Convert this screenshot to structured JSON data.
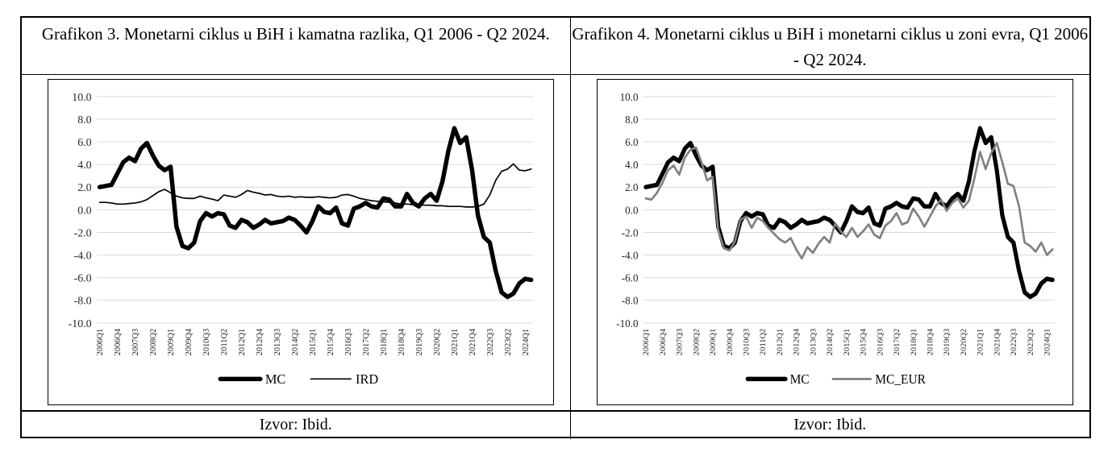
{
  "panels": [
    {
      "title": "Grafikon 3. Monetarni ciklus u BiH i kamatna razlika, Q1 2006 - Q2 2024.",
      "source": "Izvor: Ibid."
    },
    {
      "title": "Grafikon 4. Monetarni ciklus u BiH i monetarni ciklus u zoni evra, Q1 2006 - Q2 2024.",
      "source": "Izvor: Ibid."
    }
  ],
  "chart_data": [
    {
      "type": "line",
      "title": "Grafikon 3. Monetarni ciklus u BiH i kamatna razlika, Q1 2006 - Q2 2024.",
      "xlabel": "",
      "ylabel": "",
      "ylim": [
        -10,
        10
      ],
      "ytick_step": 2,
      "xtick_step": 3,
      "grid": true,
      "grid_color": "#d9d9d9",
      "legend_position": "bottom",
      "ytick_labels": [
        "10.0",
        "8.0",
        "6.0",
        "4.0",
        "2.0",
        "0.0",
        "-2.0",
        "-4.0",
        "-6.0",
        "-8.0",
        "-10.0"
      ],
      "xtick_labels": [
        "2006Q1",
        "2006Q4",
        "2007Q3",
        "2008Q2",
        "2009Q1",
        "2009Q4",
        "2010Q3",
        "2011Q2",
        "2012Q1",
        "2012Q4",
        "2013Q3",
        "2014Q2",
        "2015Q1",
        "2015Q4",
        "2016Q3",
        "2017Q2",
        "2018Q1",
        "2018Q4",
        "2019Q3",
        "2020Q2",
        "2021Q1",
        "2021Q4",
        "2022Q3",
        "2023Q2",
        "2024Q1"
      ],
      "x": [
        "2006Q1",
        "2006Q2",
        "2006Q3",
        "2006Q4",
        "2007Q1",
        "2007Q2",
        "2007Q3",
        "2007Q4",
        "2008Q1",
        "2008Q2",
        "2008Q3",
        "2008Q4",
        "2009Q1",
        "2009Q2",
        "2009Q3",
        "2009Q4",
        "2010Q1",
        "2010Q2",
        "2010Q3",
        "2010Q4",
        "2011Q1",
        "2011Q2",
        "2011Q3",
        "2011Q4",
        "2012Q1",
        "2012Q2",
        "2012Q3",
        "2012Q4",
        "2013Q1",
        "2013Q2",
        "2013Q3",
        "2013Q4",
        "2014Q1",
        "2014Q2",
        "2014Q3",
        "2014Q4",
        "2015Q1",
        "2015Q2",
        "2015Q3",
        "2015Q4",
        "2016Q1",
        "2016Q2",
        "2016Q3",
        "2016Q4",
        "2017Q1",
        "2017Q2",
        "2017Q3",
        "2017Q4",
        "2018Q1",
        "2018Q2",
        "2018Q3",
        "2018Q4",
        "2019Q1",
        "2019Q2",
        "2019Q3",
        "2019Q4",
        "2020Q1",
        "2020Q2",
        "2020Q3",
        "2020Q4",
        "2021Q1",
        "2021Q2",
        "2021Q3",
        "2021Q4",
        "2022Q1",
        "2022Q2",
        "2022Q3",
        "2022Q4",
        "2023Q1",
        "2023Q2",
        "2023Q3",
        "2023Q4",
        "2024Q1",
        "2024Q2"
      ],
      "series": [
        {
          "name": "MC",
          "color": "#000000",
          "values": [
            2.0,
            2.1,
            2.2,
            3.2,
            4.2,
            4.6,
            4.3,
            5.4,
            5.9,
            4.8,
            3.9,
            3.5,
            3.8,
            -1.5,
            -3.2,
            -3.4,
            -2.9,
            -1.0,
            -0.3,
            -0.6,
            -0.3,
            -0.4,
            -1.4,
            -1.6,
            -0.9,
            -1.1,
            -1.6,
            -1.3,
            -0.9,
            -1.2,
            -1.1,
            -1.0,
            -0.7,
            -0.9,
            -1.4,
            -2.0,
            -1.0,
            0.3,
            -0.2,
            -0.3,
            0.2,
            -1.2,
            -1.4,
            0.1,
            0.3,
            0.6,
            0.3,
            0.2,
            1.0,
            0.9,
            0.3,
            0.3,
            1.4,
            0.6,
            0.3,
            1.0,
            1.4,
            0.8,
            2.5,
            5.2,
            7.2,
            5.9,
            6.4,
            3.5,
            -0.5,
            -2.4,
            -2.9,
            -5.4,
            -7.3,
            -7.7,
            -7.4,
            -6.5,
            -6.1,
            -6.2
          ]
        },
        {
          "name": "IRD",
          "color": "#000000",
          "values": [
            0.65,
            0.65,
            0.6,
            0.5,
            0.5,
            0.55,
            0.6,
            0.7,
            0.9,
            1.25,
            1.6,
            1.8,
            1.5,
            1.2,
            1.05,
            1.0,
            1.0,
            1.2,
            1.05,
            0.95,
            0.8,
            1.3,
            1.2,
            1.1,
            1.35,
            1.7,
            1.55,
            1.45,
            1.3,
            1.35,
            1.2,
            1.15,
            1.2,
            1.1,
            1.15,
            1.1,
            1.1,
            1.15,
            1.1,
            1.05,
            1.1,
            1.3,
            1.35,
            1.2,
            1.0,
            0.9,
            0.8,
            0.75,
            0.7,
            0.65,
            0.6,
            0.5,
            0.5,
            0.45,
            0.45,
            0.4,
            0.4,
            0.35,
            0.35,
            0.3,
            0.3,
            0.3,
            0.25,
            0.25,
            0.3,
            0.5,
            1.3,
            2.6,
            3.4,
            3.6,
            4.05,
            3.5,
            3.45,
            3.6
          ]
        }
      ]
    },
    {
      "type": "line",
      "title": "Grafikon 4. Monetarni ciklus u BiH i monetarni ciklus u zoni evra, Q1 2006 - Q2 2024.",
      "xlabel": "",
      "ylabel": "",
      "ylim": [
        -10,
        10
      ],
      "ytick_step": 2,
      "xtick_step": 3,
      "grid": true,
      "grid_color": "#d9d9d9",
      "legend_position": "bottom",
      "ytick_labels": [
        "10.0",
        "8.0",
        "6.0",
        "4.0",
        "2.0",
        "0.0",
        "-2.0",
        "-4.0",
        "-6.0",
        "-8.0",
        "-10.0"
      ],
      "xtick_labels": [
        "2006Q1",
        "2006Q4",
        "2007Q3",
        "2008Q2",
        "2009Q1",
        "2009Q4",
        "2010Q3",
        "2011Q2",
        "2012Q1",
        "2012Q4",
        "2013Q3",
        "2014Q2",
        "2015Q1",
        "2015Q4",
        "2016Q3",
        "2017Q2",
        "2018Q1",
        "2018Q4",
        "2019Q3",
        "2020Q2",
        "2021Q1",
        "2021Q4",
        "2022Q3",
        "2023Q2",
        "2024Q1"
      ],
      "x": [
        "2006Q1",
        "2006Q2",
        "2006Q3",
        "2006Q4",
        "2007Q1",
        "2007Q2",
        "2007Q3",
        "2007Q4",
        "2008Q1",
        "2008Q2",
        "2008Q3",
        "2008Q4",
        "2009Q1",
        "2009Q2",
        "2009Q3",
        "2009Q4",
        "2010Q1",
        "2010Q2",
        "2010Q3",
        "2010Q4",
        "2011Q1",
        "2011Q2",
        "2011Q3",
        "2011Q4",
        "2012Q1",
        "2012Q2",
        "2012Q3",
        "2012Q4",
        "2013Q1",
        "2013Q2",
        "2013Q3",
        "2013Q4",
        "2014Q1",
        "2014Q2",
        "2014Q3",
        "2014Q4",
        "2015Q1",
        "2015Q2",
        "2015Q3",
        "2015Q4",
        "2016Q1",
        "2016Q2",
        "2016Q3",
        "2016Q4",
        "2017Q1",
        "2017Q2",
        "2017Q3",
        "2017Q4",
        "2018Q1",
        "2018Q2",
        "2018Q3",
        "2018Q4",
        "2019Q1",
        "2019Q2",
        "2019Q3",
        "2019Q4",
        "2020Q1",
        "2020Q2",
        "2020Q3",
        "2020Q4",
        "2021Q1",
        "2021Q2",
        "2021Q3",
        "2021Q4",
        "2022Q1",
        "2022Q2",
        "2022Q3",
        "2022Q4",
        "2023Q1",
        "2023Q2",
        "2023Q3",
        "2023Q4",
        "2024Q1",
        "2024Q2"
      ],
      "series": [
        {
          "name": "MC",
          "color": "#000000",
          "values": [
            2.0,
            2.1,
            2.2,
            3.2,
            4.2,
            4.6,
            4.3,
            5.4,
            5.9,
            4.8,
            3.9,
            3.5,
            3.8,
            -1.5,
            -3.2,
            -3.4,
            -2.9,
            -1.0,
            -0.3,
            -0.6,
            -0.3,
            -0.4,
            -1.4,
            -1.6,
            -0.9,
            -1.1,
            -1.6,
            -1.3,
            -0.9,
            -1.2,
            -1.1,
            -1.0,
            -0.7,
            -0.9,
            -1.4,
            -2.0,
            -1.0,
            0.3,
            -0.2,
            -0.3,
            0.2,
            -1.2,
            -1.4,
            0.1,
            0.3,
            0.6,
            0.3,
            0.2,
            1.0,
            0.9,
            0.3,
            0.3,
            1.4,
            0.6,
            0.3,
            1.0,
            1.4,
            0.8,
            2.5,
            5.2,
            7.2,
            5.9,
            6.4,
            3.5,
            -0.5,
            -2.4,
            -2.9,
            -5.4,
            -7.3,
            -7.7,
            -7.4,
            -6.5,
            -6.1,
            -6.2
          ]
        },
        {
          "name": "MC_EUR",
          "color": "#808080",
          "values": [
            1.0,
            0.9,
            1.5,
            2.4,
            3.5,
            3.9,
            3.1,
            4.6,
            5.3,
            5.5,
            4.2,
            2.6,
            2.9,
            -1.8,
            -3.4,
            -3.6,
            -2.8,
            -0.9,
            -0.6,
            -1.6,
            -0.7,
            -1.0,
            -1.6,
            -2.1,
            -2.6,
            -2.9,
            -2.5,
            -3.5,
            -4.3,
            -3.3,
            -3.8,
            -3.0,
            -2.4,
            -2.9,
            -1.2,
            -1.9,
            -2.4,
            -1.6,
            -2.4,
            -1.9,
            -1.3,
            -2.2,
            -2.5,
            -1.4,
            -1.0,
            -0.3,
            -1.3,
            -1.1,
            0.1,
            -0.6,
            -1.5,
            -0.6,
            0.3,
            0.9,
            -0.1,
            0.6,
            1.0,
            0.2,
            0.8,
            2.8,
            5.1,
            3.6,
            5.0,
            5.9,
            4.2,
            2.3,
            2.1,
            0.3,
            -2.9,
            -3.2,
            -3.7,
            -2.9,
            -4.0,
            -3.5
          ]
        }
      ]
    }
  ]
}
